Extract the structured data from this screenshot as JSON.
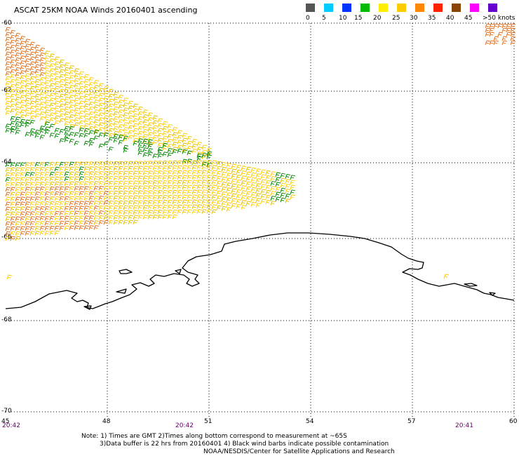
{
  "title": "ASCAT 25KM NOAA Winds 20160401 ascending",
  "legend": {
    "labels": [
      "0",
      "5",
      "10",
      "15",
      "20",
      "25",
      "30",
      "35",
      "40",
      "45",
      ">50 knots"
    ],
    "colors": [
      "#555555",
      "#00ccff",
      "#0033ff",
      "#00bb00",
      "#ffee00",
      "#ffcc00",
      "#ff8800",
      "#ff2200",
      "#884400",
      "#ff00ff",
      "#6600cc"
    ]
  },
  "lat_labels": [
    "-60",
    "-62",
    "-64",
    "-66",
    "-68",
    "-70"
  ],
  "lon_labels": [
    "45",
    "48",
    "51",
    "54",
    "57",
    "60"
  ],
  "times": [
    "20:42",
    "20:42",
    "20:41"
  ],
  "notes": {
    "line1": "Note: 1) Times are GMT 2)Times along bottom correspond to measurement at ~65S",
    "line2": "3)Data buffer is 22 hrs from 20160401 4) Black wind barbs indicate possible contamination",
    "line3": "NOAA/NESDIS/Center for Satellite Applications and Research"
  },
  "colors": {
    "grid": "#000000",
    "coast": "#000000",
    "barb_yellow": "#ffcc00",
    "barb_gold": "#e8c000",
    "barb_orange": "#e07020",
    "barb_green": "#008800",
    "time_label": "#660066"
  }
}
